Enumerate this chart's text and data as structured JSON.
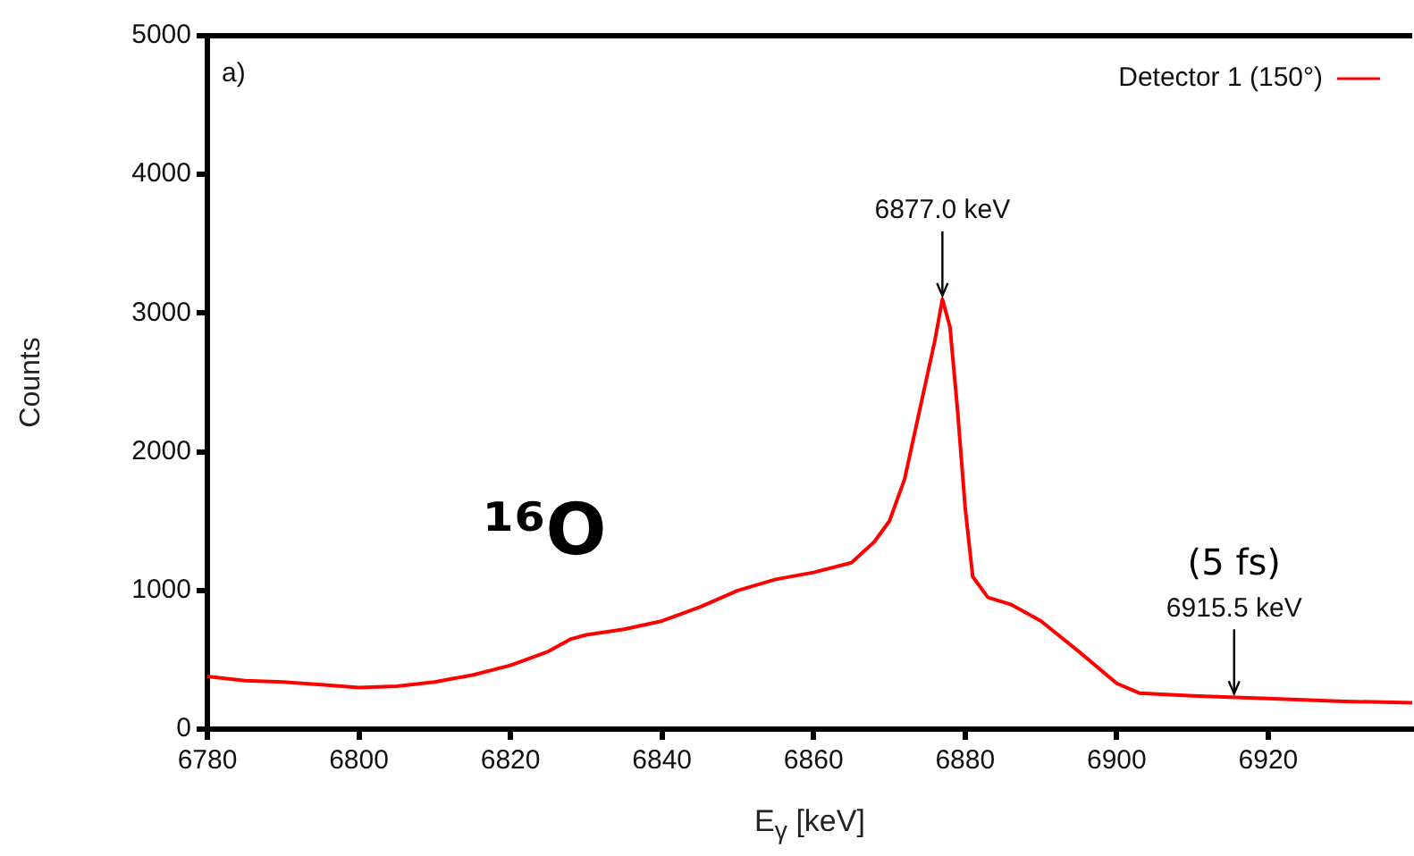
{
  "chart_data": {
    "type": "line",
    "xlabel": "E$_{γ}$ [keV]",
    "ylabel": "Counts",
    "xlim": [
      6780,
      6939
    ],
    "xticks": [
      6780,
      6800,
      6820,
      6840,
      6860,
      6880,
      6900,
      6920
    ],
    "ylim": [
      0,
      5000
    ],
    "yticks": [
      0,
      1000,
      2000,
      3000,
      4000,
      5000
    ],
    "grid": false,
    "legend": "top right",
    "marker": "none",
    "line_style": "solid",
    "annotations": [
      "a)",
      "¹⁶O",
      {
        "text": "6877.0 keV",
        "x": 6877,
        "y": 3100
      },
      {
        "text": "6915.5 keV",
        "x": 6915.5,
        "y": 230
      },
      "(5 fs)"
    ],
    "series": [
      {
        "name": "Detector 1 (150°)",
        "color": "#ff0000",
        "x": [
          6780,
          6785,
          6790,
          6795,
          6800,
          6805,
          6810,
          6815,
          6820,
          6825,
          6828,
          6830,
          6835,
          6840,
          6845,
          6850,
          6855,
          6860,
          6865,
          6868,
          6870,
          6872,
          6874,
          6876,
          6877,
          6878,
          6879,
          6880,
          6881,
          6883,
          6886,
          6890,
          6895,
          6900,
          6903,
          6910,
          6920,
          6930,
          6939
        ],
        "values": [
          380,
          350,
          340,
          320,
          300,
          310,
          340,
          390,
          460,
          560,
          650,
          680,
          720,
          780,
          880,
          1000,
          1080,
          1130,
          1200,
          1350,
          1500,
          1800,
          2300,
          2800,
          3100,
          2900,
          2300,
          1600,
          1100,
          950,
          900,
          780,
          560,
          330,
          260,
          240,
          220,
          200,
          190
        ]
      }
    ]
  }
}
